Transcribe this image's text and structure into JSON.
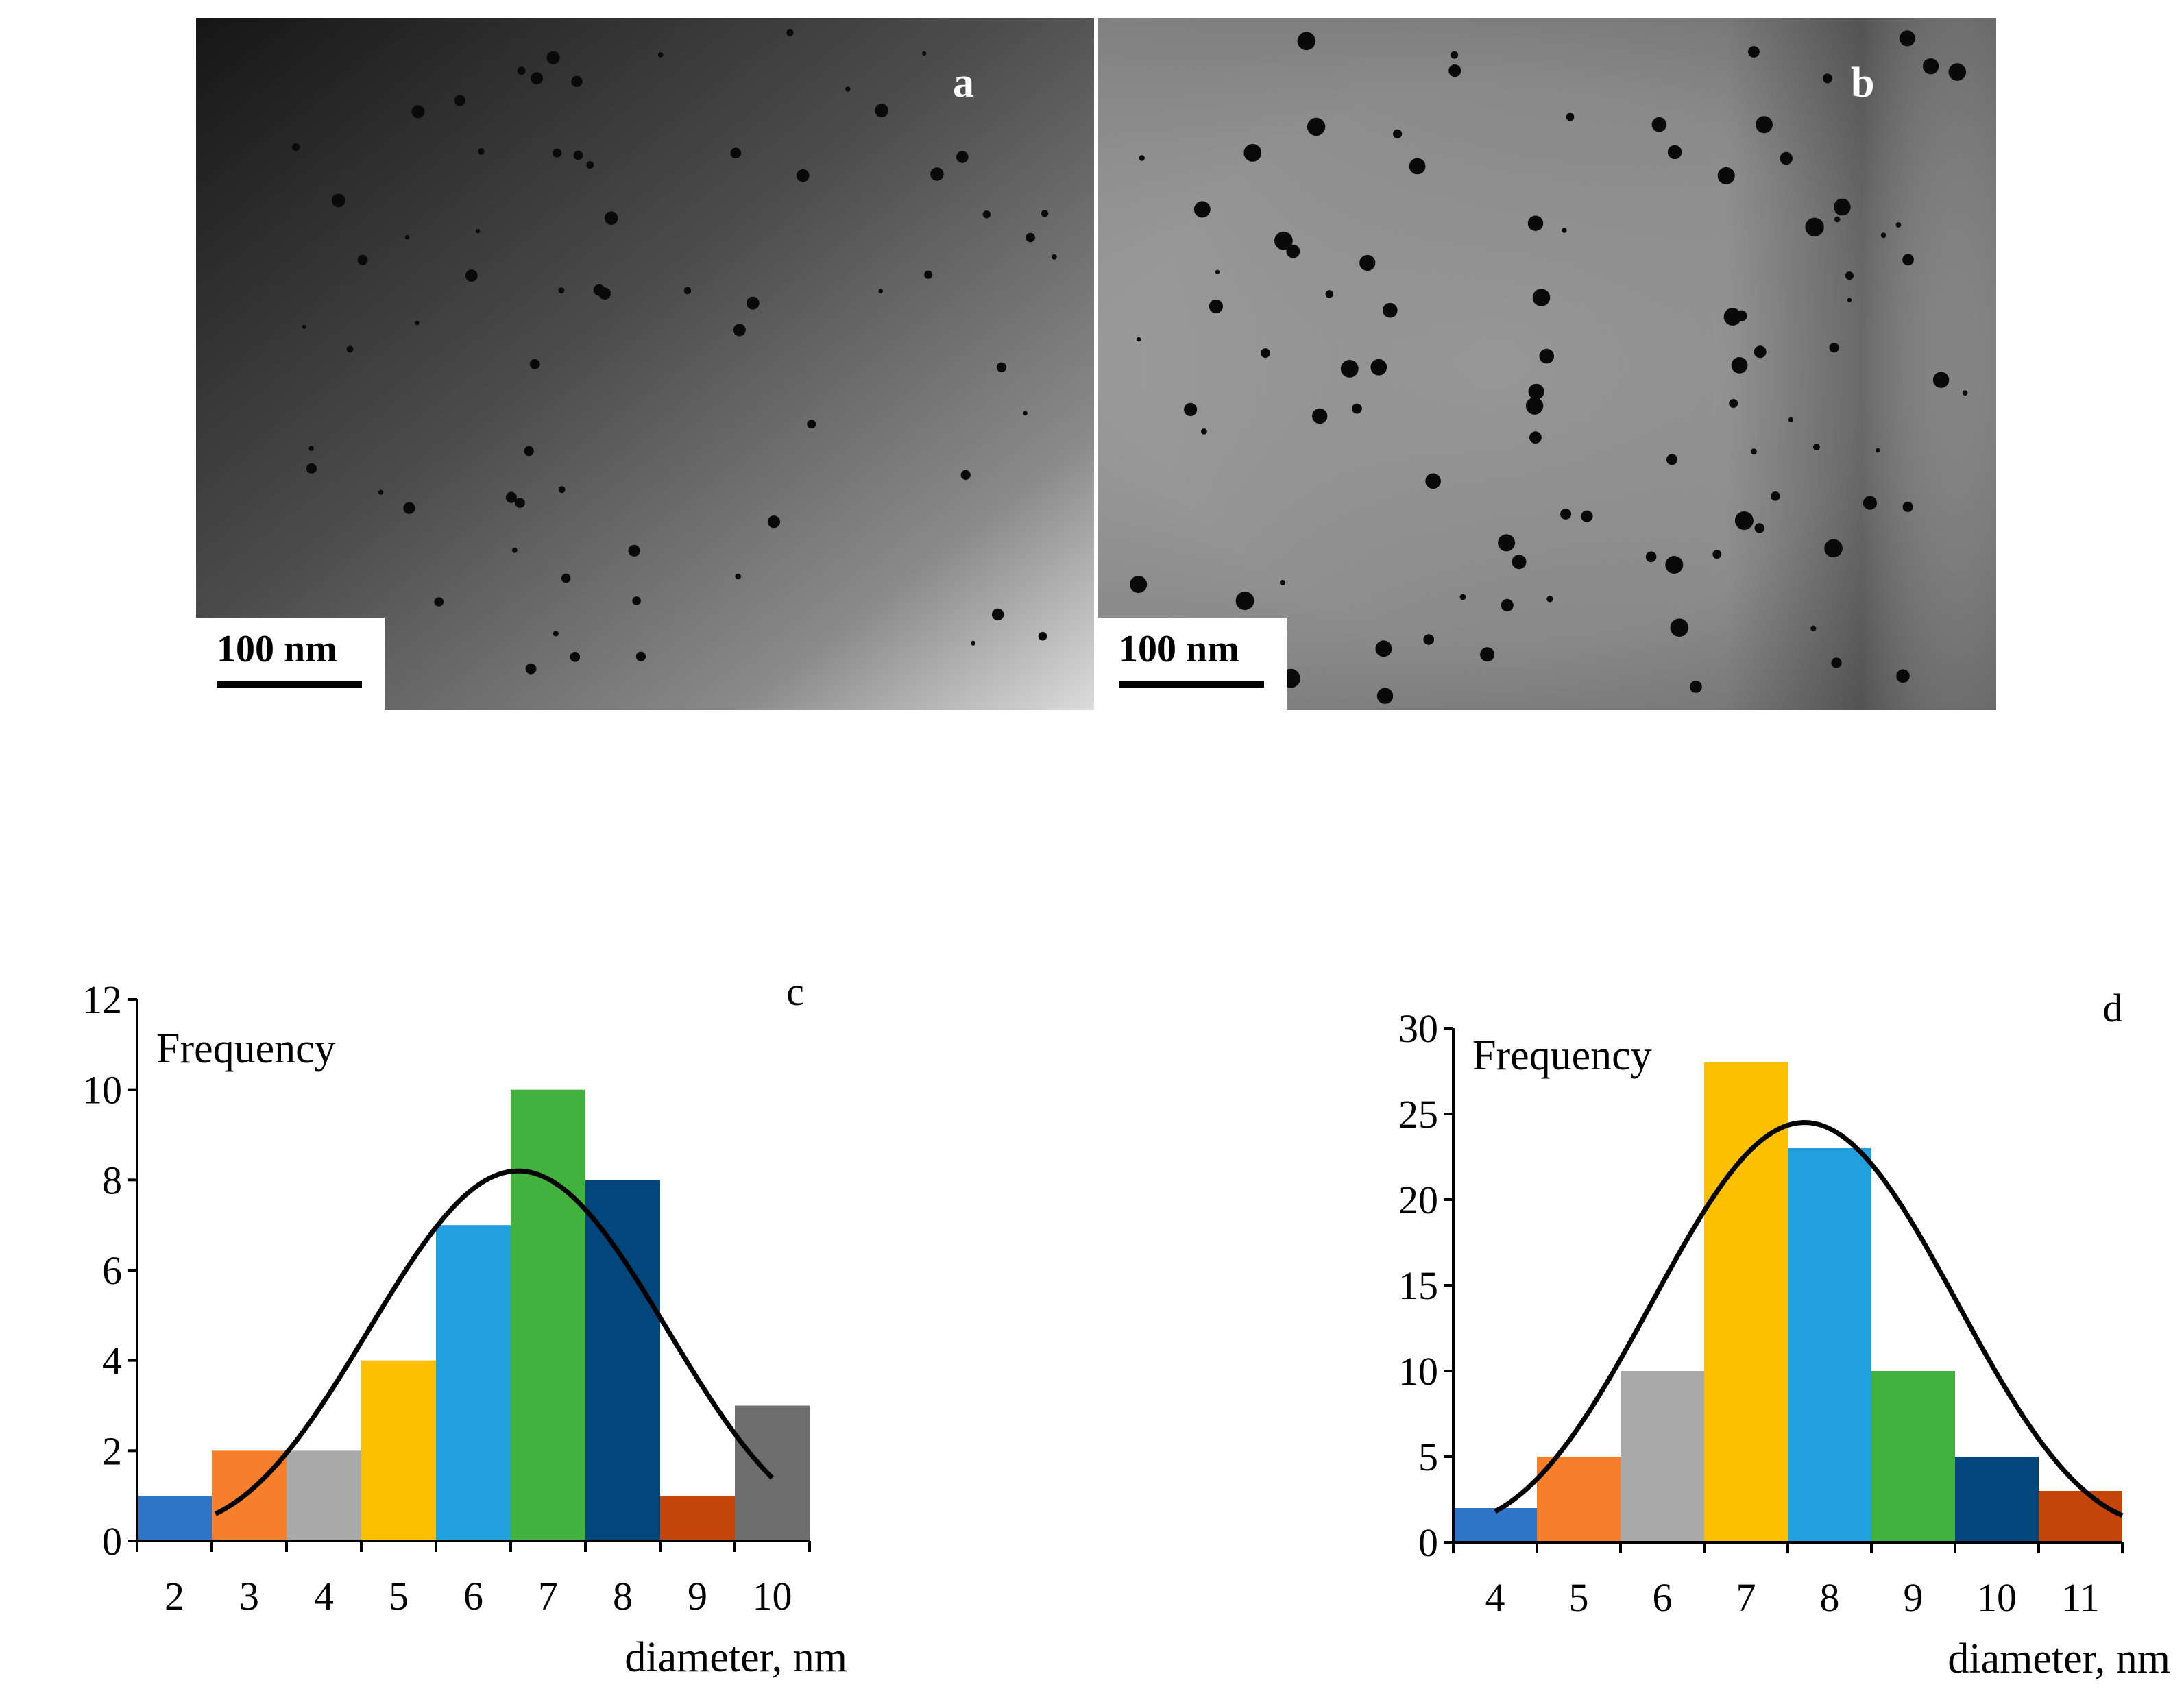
{
  "micrographs": [
    {
      "id": "a",
      "letter": "a",
      "scale_label": "100 nm"
    },
    {
      "id": "b",
      "letter": "b",
      "scale_label": "100 nm"
    }
  ],
  "chart_data": [
    {
      "type": "bar",
      "panel_letter": "c",
      "ylabel": "Frequency",
      "xlabel": "diameter, nm",
      "ylim": [
        0,
        12
      ],
      "yticks": [
        0,
        2,
        4,
        6,
        8,
        10,
        12
      ],
      "categories": [
        "2",
        "3",
        "4",
        "5",
        "6",
        "7",
        "8",
        "9",
        "10"
      ],
      "values": [
        1,
        2,
        2,
        4,
        7,
        10,
        8,
        1,
        3
      ],
      "colors": [
        "#2E75C8",
        "#F57F2A",
        "#A9A9A9",
        "#FDC000",
        "#21A0DE",
        "#42B23F",
        "#03467C",
        "#C4460A",
        "#6E6E6E"
      ],
      "fit_curve": {
        "type": "gaussian",
        "x_start": 2.55,
        "x_end": 10.0,
        "peak_x": 6.6,
        "peak_y": 8.2,
        "min_y": 0
      },
      "grid": false
    },
    {
      "type": "bar",
      "panel_letter": "d",
      "ylabel": "Frequency",
      "xlabel": "diameter, nm",
      "ylim": [
        0,
        30
      ],
      "yticks": [
        0,
        5,
        10,
        15,
        20,
        25,
        30
      ],
      "categories": [
        "4",
        "5",
        "6",
        "7",
        "8",
        "9",
        "10",
        "11"
      ],
      "values": [
        2,
        5,
        10,
        28,
        23,
        10,
        5,
        3
      ],
      "colors": [
        "#2E75C8",
        "#F57F2A",
        "#A9A9A9",
        "#FDC000",
        "#21A0DE",
        "#42B23F",
        "#03467C",
        "#C4460A"
      ],
      "fit_curve": {
        "type": "gaussian",
        "x_start": 4.0,
        "x_end": 11.5,
        "peak_x": 7.7,
        "peak_y": 24.5,
        "min_y": 0
      },
      "grid": false
    }
  ]
}
